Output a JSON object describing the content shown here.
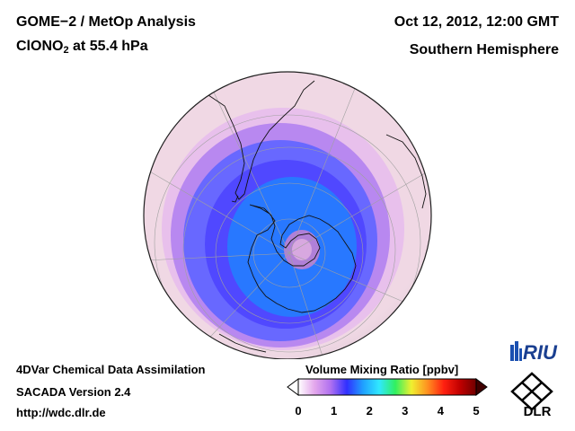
{
  "header": {
    "product": "GOME−2 / MetOp Analysis",
    "species_prefix": "ClONO",
    "species_sub": "2",
    "species_suffix": " at 55.4 hPa",
    "datetime": "Oct 12, 2012, 12:00 GMT",
    "region": "Southern Hemisphere"
  },
  "footer": {
    "line1": "4DVar Chemical Data Assimilation",
    "line2": "SACADA Version 2.4",
    "line3": "http://wdc.dlr.de"
  },
  "colorbar": {
    "title": "Volume Mixing Ratio [ppbv]",
    "ticks": [
      "0",
      "1",
      "2",
      "3",
      "4",
      "5"
    ],
    "range": [
      0,
      5
    ],
    "colors": [
      "#ffffff",
      "#e4a8ec",
      "#b070f0",
      "#3030ff",
      "#20a0ff",
      "#30e8ff",
      "#30f060",
      "#f0f030",
      "#ff9020",
      "#ff2010",
      "#c00000",
      "#700000"
    ]
  },
  "logos": {
    "riu": "RIU",
    "dlr": "DLR"
  },
  "map": {
    "projection": "orthographic",
    "center": "South Pole",
    "colors": {
      "ocean_background": "#f0d8e4",
      "outer_band": "#c890e8",
      "vortex_edge": "#5a5cff",
      "vortex_core": "#2870ff",
      "pole_center": "#b080d8"
    }
  }
}
